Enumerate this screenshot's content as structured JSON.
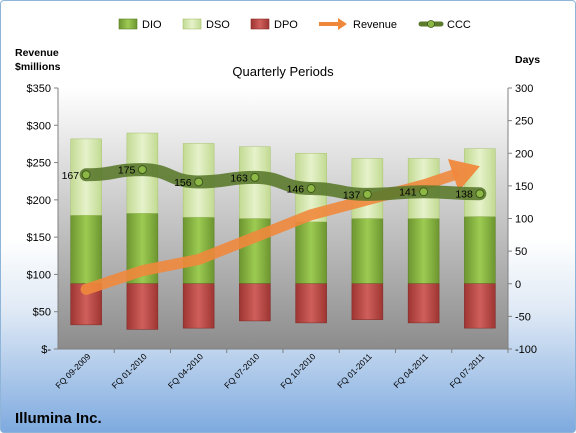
{
  "chart_data": {
    "type": "bar",
    "title": "Quarterly Periods",
    "company": "Illumina Inc.",
    "left_axis": {
      "label": "Revenue $millions",
      "label_lines": [
        "Revenue",
        "$millions"
      ],
      "ylim": [
        0,
        350
      ],
      "ticks": [
        0,
        50,
        100,
        150,
        200,
        250,
        300,
        350
      ],
      "tick_labels": [
        "$-",
        "$50",
        "$100",
        "$150",
        "$200",
        "$250",
        "$300",
        "$350"
      ]
    },
    "right_axis": {
      "label": "Days",
      "ylim": [
        -100,
        300
      ],
      "ticks": [
        -100,
        -50,
        0,
        50,
        100,
        150,
        200,
        250,
        300
      ],
      "tick_labels": [
        "-100",
        "-50",
        "0",
        "50",
        "100",
        "150",
        "200",
        "250",
        "300"
      ]
    },
    "categories": [
      "FQ 09-2009",
      "FQ 01-2010",
      "FQ 04-2010",
      "FQ 07-2010",
      "FQ 10-2010",
      "FQ 01-2011",
      "FQ 04-2011",
      "FQ 07-2011"
    ],
    "series": [
      {
        "name": "DIO",
        "axis": "right",
        "stack": "pos",
        "color": "#8db846",
        "values": [
          105,
          108,
          102,
          100,
          95,
          100,
          100,
          103
        ]
      },
      {
        "name": "DSO",
        "axis": "right",
        "stack": "pos",
        "color": "#d5e8ad",
        "values": [
          117,
          123,
          113,
          110,
          105,
          92,
          92,
          104
        ]
      },
      {
        "name": "DPO",
        "axis": "right",
        "stack": "neg",
        "color": "#c0504d",
        "values": [
          -63,
          -70,
          -68,
          -57,
          -60,
          -55,
          -60,
          -68
        ]
      },
      {
        "name": "Revenue",
        "axis": "left",
        "type": "arrow",
        "color": "#f0883c",
        "values": [
          80,
          105,
          120,
          150,
          180,
          200,
          220,
          245
        ]
      },
      {
        "name": "CCC",
        "axis": "right",
        "type": "line",
        "color": "#5b7a2e",
        "values": [
          167,
          175,
          156,
          163,
          146,
          137,
          141,
          138
        ],
        "data_labels": [
          "167",
          "175",
          "156",
          "163",
          "146",
          "137",
          "141",
          "138"
        ]
      }
    ],
    "legend": {
      "position": "top",
      "items": [
        "DIO",
        "DSO",
        "DPO",
        "Revenue",
        "CCC"
      ]
    },
    "grid": false
  }
}
